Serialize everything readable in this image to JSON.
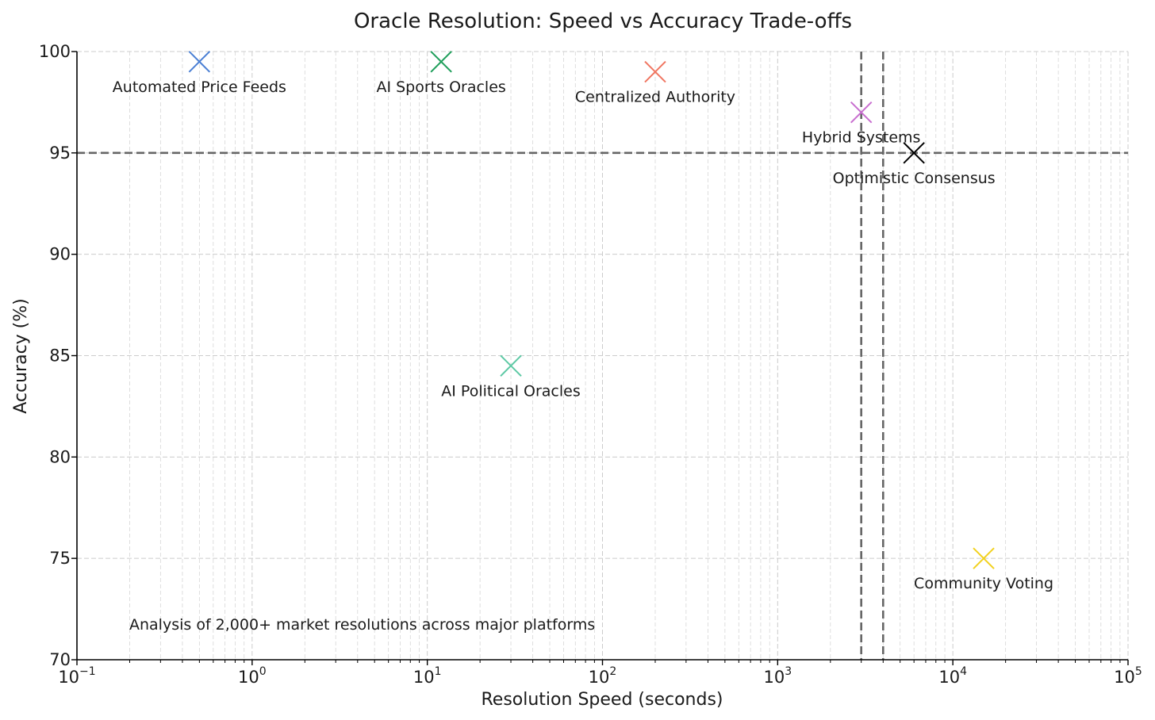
{
  "chart_data": {
    "type": "scatter",
    "title": "Oracle Resolution: Speed vs Accuracy Trade-offs",
    "xlabel": "Resolution Speed (seconds)",
    "ylabel": "Accuracy (%)",
    "xscale": "log",
    "xlim": [
      0.1,
      100000
    ],
    "ylim": [
      70,
      100
    ],
    "grid": true,
    "x_ticks": [
      {
        "base": "10",
        "exp": "−1"
      },
      {
        "base": "10",
        "exp": "0"
      },
      {
        "base": "10",
        "exp": "1"
      },
      {
        "base": "10",
        "exp": "2"
      },
      {
        "base": "10",
        "exp": "3"
      },
      {
        "base": "10",
        "exp": "4"
      },
      {
        "base": "10",
        "exp": "5"
      }
    ],
    "y_ticks": [
      "70",
      "75",
      "80",
      "85",
      "90",
      "95",
      "100"
    ],
    "points": [
      {
        "name": "Automated Price Feeds",
        "x": 0.5,
        "y": 99.5,
        "color": "#4a7fd4"
      },
      {
        "name": "AI Sports Oracles",
        "x": 12,
        "y": 99.5,
        "color": "#1e9e5a"
      },
      {
        "name": "Centralized Authority",
        "x": 200,
        "y": 99,
        "color": "#f07560"
      },
      {
        "name": "Hybrid Systems",
        "x": 3000,
        "y": 97,
        "color": "#c86ecf"
      },
      {
        "name": "Optimistic Consensus",
        "x": 6000,
        "y": 95,
        "color": "#000000"
      },
      {
        "name": "AI Political Oracles",
        "x": 30,
        "y": 84.5,
        "color": "#5ec9a5"
      },
      {
        "name": "Community Voting",
        "x": 15000,
        "y": 75,
        "color": "#f2d11e"
      }
    ],
    "reference_lines": {
      "horizontal": [
        95
      ],
      "vertical": [
        3000,
        4000
      ]
    },
    "annotation": "Analysis of 2,000+ market resolutions across major platforms"
  }
}
